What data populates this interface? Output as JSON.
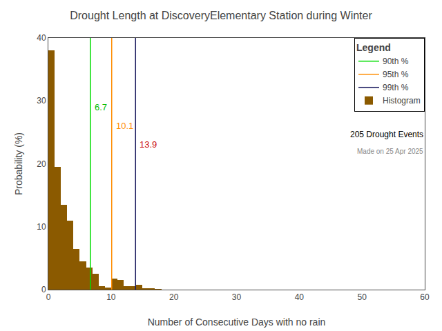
{
  "chart_data": {
    "type": "histogram",
    "title": "Drought Length at DiscoveryElementary Station during Winter",
    "xlabel": "Number of Consecutive Days with no rain",
    "ylabel": "Probability (%)",
    "name": "Histogram",
    "color": "#8B5A00",
    "bins": [
      0,
      1,
      2,
      3,
      4,
      5,
      6,
      7,
      8,
      9,
      10,
      11,
      12,
      13,
      14,
      15,
      16,
      17,
      18,
      19,
      20,
      21,
      22,
      23,
      24,
      25,
      26,
      27,
      28,
      29,
      30,
      31,
      32,
      33,
      34,
      35,
      36,
      37,
      38,
      39,
      40,
      41,
      42,
      43,
      44,
      45,
      46,
      47,
      48,
      49,
      50,
      51,
      52,
      53,
      54,
      55,
      56,
      57,
      58,
      59,
      60
    ],
    "values": [
      38.0,
      19.5,
      13.5,
      11.0,
      6.5,
      4.5,
      3.5,
      2.5,
      0.5,
      0.3,
      1.8,
      1.5,
      0.5,
      0.5,
      0.8,
      0.2,
      0.2,
      0.1,
      0.0,
      0.0,
      0.0,
      0.0,
      0.0,
      0.0,
      0.0,
      0.0,
      0.0,
      0.0,
      0.0,
      0.0,
      0.0,
      0.0,
      0.0,
      0.0,
      0.0,
      0.0,
      0.0,
      0.0,
      0.0,
      0.0,
      0.0,
      0.0,
      0.0,
      0.0,
      0.0,
      0.0,
      0.0,
      0.0,
      0.0,
      0.0,
      0.0,
      0.0,
      0.0,
      0.0,
      0.0,
      0.0,
      0.0,
      0.0,
      0.0,
      0.0
    ],
    "percentiles": [
      {
        "name": "90th %",
        "value": 6.7,
        "color": "#00dd00",
        "label_color": "#00bb00"
      },
      {
        "name": "95th %",
        "value": 10.1,
        "color": "#ff8c00",
        "label_color": "#ff8c00"
      },
      {
        "name": "99th %",
        "value": 13.9,
        "color": "#1a1a5e",
        "label_color": "#cc1111"
      }
    ],
    "legend_title": "Legend",
    "annotations": [
      "205 Drought Events",
      "Made on 25 Apr 2025"
    ],
    "xlim": [
      0,
      60
    ],
    "ylim": [
      0,
      40
    ],
    "xticks": [
      0,
      10,
      20,
      30,
      40,
      50,
      60
    ],
    "yticks": [
      0,
      10,
      20,
      30,
      40
    ],
    "grid": false,
    "legend": "upper right"
  }
}
